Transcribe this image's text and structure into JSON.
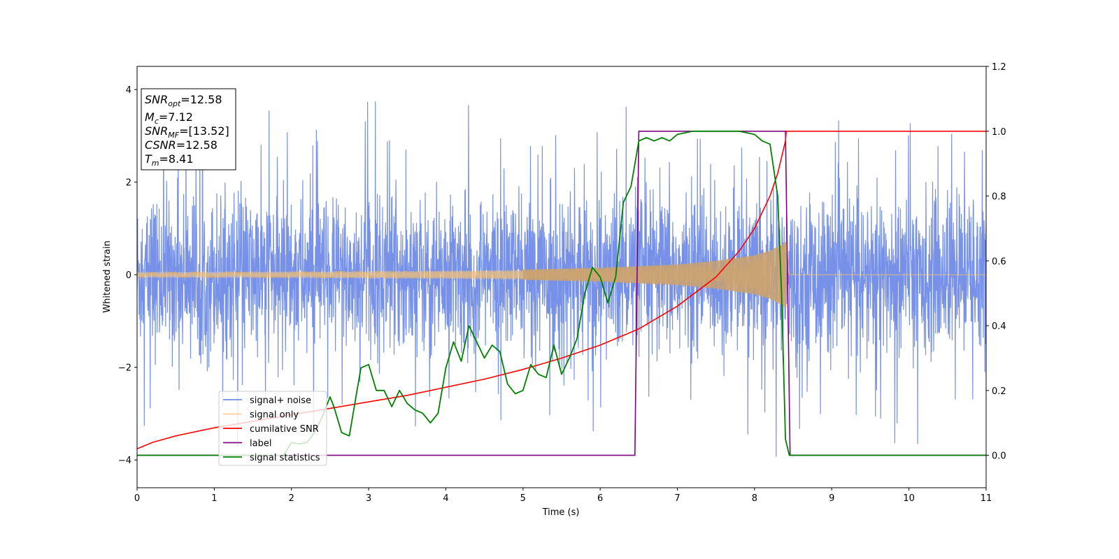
{
  "chart_data": {
    "type": "line",
    "xlabel": "Time (s)",
    "ylabel": "Whitened strain",
    "xlim": [
      0,
      11
    ],
    "ylim_left": [
      -4.6,
      4.5
    ],
    "ylim_right": [
      -0.1,
      1.2
    ],
    "x_ticks": [
      0,
      1,
      2,
      3,
      4,
      5,
      6,
      7,
      8,
      9,
      10,
      11
    ],
    "y_ticks_left": [
      -4,
      -2,
      0,
      2,
      4
    ],
    "y_ticks_right": [
      0.0,
      0.2,
      0.4,
      0.6,
      0.8,
      1.0,
      1.2
    ],
    "grid": false,
    "legend_position": "lower-left",
    "info_box": {
      "lines": [
        {
          "math": "SNR",
          "sub": "opt",
          "rest": "=12.58"
        },
        {
          "math": "M",
          "sub": "c",
          "rest": "=7.12"
        },
        {
          "math": "SNR",
          "sub": "MF",
          "rest": "=[13.52]"
        },
        {
          "math": "CSNR",
          "sub": "",
          "rest": "=12.58"
        },
        {
          "math": "T",
          "sub": "m",
          "rest": "=8.41"
        }
      ]
    },
    "series": [
      {
        "name": "signal+ noise",
        "axis": "left",
        "color": "#6f8be6",
        "description_values": {
          "noise_std": 0.8,
          "spike_max": 4.1,
          "spike_min": -4.2
        }
      },
      {
        "name": "signal only",
        "axis": "left",
        "color": "#f5c073",
        "envelope": {
          "x": [
            0.0,
            1.0,
            2.0,
            3.0,
            4.0,
            5.0,
            6.0,
            7.0,
            7.5,
            8.0,
            8.2,
            8.35,
            8.41,
            8.45,
            11.0
          ],
          "amp": [
            0.06,
            0.065,
            0.07,
            0.08,
            0.09,
            0.11,
            0.15,
            0.22,
            0.3,
            0.42,
            0.52,
            0.65,
            0.72,
            0.0,
            0.0
          ]
        }
      },
      {
        "name": "cumilative SNR",
        "axis": "right",
        "color": "#ff0000",
        "x": [
          0.0,
          0.2,
          0.5,
          1.0,
          1.5,
          2.0,
          2.5,
          3.0,
          3.5,
          4.0,
          4.5,
          5.0,
          5.5,
          6.0,
          6.5,
          7.0,
          7.5,
          7.8,
          8.0,
          8.2,
          8.3,
          8.4,
          8.41,
          11.0
        ],
        "y": [
          0.02,
          0.04,
          0.06,
          0.085,
          0.105,
          0.125,
          0.145,
          0.165,
          0.185,
          0.21,
          0.235,
          0.265,
          0.3,
          0.34,
          0.39,
          0.46,
          0.55,
          0.63,
          0.7,
          0.8,
          0.87,
          0.97,
          1.0,
          1.0
        ]
      },
      {
        "name": "label",
        "axis": "right",
        "color": "#800080",
        "x": [
          0.0,
          6.45,
          6.5,
          8.4,
          8.46,
          11.0
        ],
        "y": [
          0.0,
          0.0,
          1.0,
          1.0,
          0.0,
          0.0
        ]
      },
      {
        "name": "signal statistics",
        "axis": "right",
        "color": "#008000",
        "x": [
          0.0,
          1.0,
          1.9,
          2.0,
          2.1,
          2.2,
          2.3,
          2.4,
          2.5,
          2.55,
          2.65,
          2.75,
          2.85,
          2.9,
          3.0,
          3.05,
          3.1,
          3.2,
          3.3,
          3.4,
          3.5,
          3.6,
          3.7,
          3.8,
          3.9,
          4.0,
          4.1,
          4.2,
          4.3,
          4.4,
          4.5,
          4.6,
          4.7,
          4.8,
          4.9,
          5.0,
          5.1,
          5.2,
          5.3,
          5.4,
          5.5,
          5.6,
          5.7,
          5.8,
          5.9,
          6.0,
          6.1,
          6.2,
          6.3,
          6.4,
          6.5,
          6.6,
          6.7,
          6.8,
          6.9,
          7.0,
          7.2,
          7.5,
          7.8,
          8.0,
          8.1,
          8.2,
          8.3,
          8.35,
          8.4,
          8.45,
          8.5,
          9.0,
          11.0
        ],
        "y": [
          0.0,
          0.0,
          0.0,
          0.04,
          0.035,
          0.04,
          0.07,
          0.12,
          0.18,
          0.15,
          0.07,
          0.06,
          0.2,
          0.27,
          0.28,
          0.24,
          0.2,
          0.2,
          0.15,
          0.2,
          0.16,
          0.14,
          0.13,
          0.1,
          0.13,
          0.27,
          0.35,
          0.29,
          0.4,
          0.35,
          0.3,
          0.34,
          0.32,
          0.22,
          0.19,
          0.2,
          0.28,
          0.25,
          0.24,
          0.34,
          0.25,
          0.3,
          0.36,
          0.5,
          0.58,
          0.55,
          0.47,
          0.55,
          0.78,
          0.83,
          0.97,
          0.98,
          0.97,
          0.98,
          0.97,
          0.99,
          1.0,
          1.0,
          1.0,
          0.99,
          0.97,
          0.96,
          0.8,
          0.5,
          0.05,
          0.0,
          0.0,
          0.0,
          0.0
        ]
      }
    ]
  }
}
